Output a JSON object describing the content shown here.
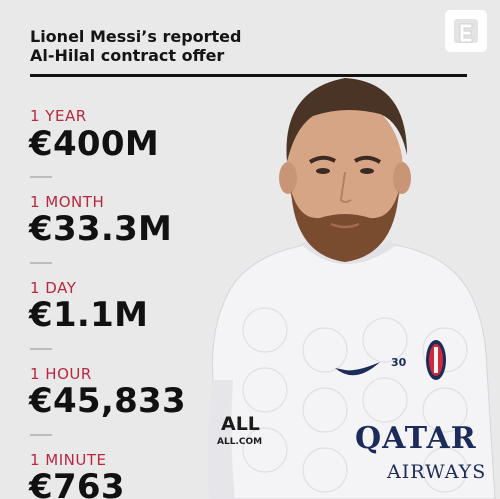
{
  "header": {
    "title_line1": "Lionel Messi’s reported",
    "title_line2": "Al-Hilal contract offer"
  },
  "stats": [
    {
      "label": "1 YEAR",
      "value": "€400M"
    },
    {
      "label": "1 MONTH",
      "value": "€33.3M"
    },
    {
      "label": "1 DAY",
      "value": "€1.1M"
    },
    {
      "label": "1 HOUR",
      "value": "€45,833"
    },
    {
      "label": "1 MINUTE",
      "value": "€763"
    }
  ],
  "player": {
    "shirt_number": "30",
    "sponsor_line1": "QATAR",
    "sponsor_line2": "AIRWAYS",
    "sleeve_logo_text": "ALL",
    "sleeve_logo_sub": "ALL.COM"
  },
  "colors": {
    "background": "#e9e9ea",
    "label_red": "#b8283c",
    "text_dark": "#111111",
    "shirt": "#f4f4f6"
  },
  "icons": {
    "brand_logo": "espn-e-logo-icon",
    "club_crest": "psg-crest-icon",
    "kit_brand": "nike-swoosh-icon"
  }
}
